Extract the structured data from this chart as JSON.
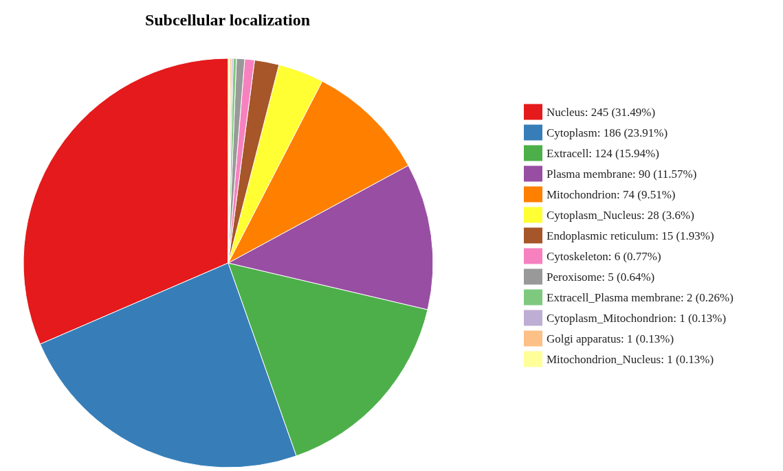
{
  "chart_data": {
    "type": "pie",
    "title": "Subcellular localization",
    "categories": [
      "Nucleus",
      "Cytoplasm",
      "Extracell",
      "Plasma membrane",
      "Mitochondrion",
      "Cytoplasm_Nucleus",
      "Endoplasmic reticulum",
      "Cytoskeleton",
      "Peroxisome",
      "Extracell_Plasma membrane",
      "Cytoplasm_Mitochondrion",
      "Golgi apparatus",
      "Mitochondrion_Nucleus"
    ],
    "values": [
      245,
      186,
      124,
      90,
      74,
      28,
      15,
      6,
      5,
      2,
      1,
      1,
      1
    ],
    "value_labels": [
      "245 (31.49%)",
      "186 (23.91%)",
      "124 (15.94%)",
      "90 (11.57%)",
      "74 (9.51%)",
      "28 (3.6%)",
      "15 (1.93%)",
      "6 (0.77%)",
      "5 (0.64%)",
      "2 (0.26%)",
      "1 (0.13%)",
      "1 (0.13%)",
      "1 (0.13%)"
    ],
    "colors": [
      "#e41a1c",
      "#377eb8",
      "#4daf4a",
      "#984ea3",
      "#ff7f00",
      "#ffff33",
      "#a65628",
      "#f781bf",
      "#999999",
      "#7fc97f",
      "#beaed4",
      "#fdc086",
      "#ffff99"
    ],
    "legend": "right"
  }
}
